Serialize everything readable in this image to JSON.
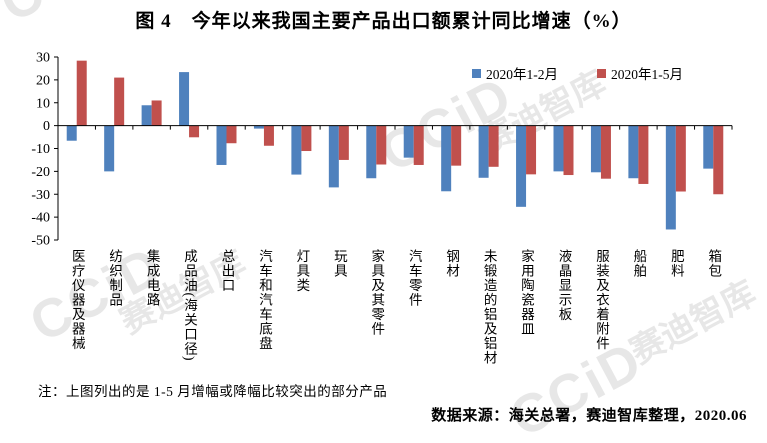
{
  "watermark": {
    "logo": "CCiD",
    "text": "赛迪智库"
  },
  "colors": {
    "series1": "#4F81BD",
    "series2": "#C0504D",
    "axis": "#000000"
  },
  "note": "注：上图列出的是 1-5 月增幅或降幅比较突出的部分产品",
  "source": "数据来源：海关总署，赛迪智库整理，2020.06",
  "chart_data": {
    "type": "bar",
    "title": "图 4　今年以来我国主要产品出口额累计同比增速（%）",
    "categories": [
      "医疗仪器及器械",
      "纺织制品",
      "集成电路",
      "成品油(海关口径)",
      "总出口",
      "汽车和汽车底盘",
      "灯具类",
      "玩具",
      "家具及其零件",
      "汽车零件",
      "钢材",
      "未锻造的铝及铝材",
      "家用陶瓷器皿",
      "液晶显示板",
      "服装及衣着附件",
      "船舶",
      "肥料",
      "箱包"
    ],
    "series": [
      {
        "name": "2020年1-2月",
        "values": [
          -6.6,
          -20.0,
          8.9,
          23.4,
          -17.2,
          -1.3,
          -21.4,
          -27.0,
          -23.0,
          -14.0,
          -28.7,
          -22.8,
          -35.5,
          -20.0,
          -20.4,
          -23.0,
          -45.4,
          -18.8
        ]
      },
      {
        "name": "2020年1-5月",
        "values": [
          28.4,
          21.0,
          11.0,
          -5.1,
          -7.7,
          -8.8,
          -11.1,
          -15.0,
          -17.0,
          -17.2,
          -17.5,
          -18.0,
          -21.3,
          -21.6,
          -23.2,
          -25.5,
          -28.8,
          -30.0
        ]
      }
    ],
    "ylim": [
      -50,
      30
    ],
    "yticks": [
      30,
      20,
      10,
      0,
      -10,
      -20,
      -30,
      -40,
      -50
    ],
    "grid": false,
    "legend": "top-right"
  }
}
